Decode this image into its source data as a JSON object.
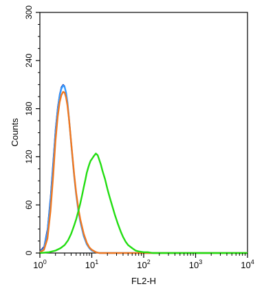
{
  "chart_data": {
    "type": "line",
    "xlabel": "FL2-H",
    "ylabel": "Counts",
    "x_scale": "log",
    "xlim": [
      1,
      10000
    ],
    "ylim": [
      0,
      300
    ],
    "grid": false,
    "x_ticks": [
      {
        "base": "10",
        "exp": "0",
        "value": 1
      },
      {
        "base": "10",
        "exp": "1",
        "value": 10
      },
      {
        "base": "10",
        "exp": "2",
        "value": 100
      },
      {
        "base": "10",
        "exp": "3",
        "value": 1000
      },
      {
        "base": "10",
        "exp": "4",
        "value": 10000
      }
    ],
    "y_ticks": [
      0,
      60,
      120,
      180,
      240,
      300
    ],
    "series": [
      {
        "color": "#1a1a8c",
        "x": [
          1,
          1.2,
          1.4,
          1.6,
          1.8,
          2.0,
          2.2,
          2.4,
          2.6,
          2.8,
          3.0,
          3.2,
          3.4,
          3.6,
          3.8,
          4.0,
          4.3,
          4.6,
          5.0,
          5.5,
          6.0,
          7.0,
          8.0,
          9.0,
          10,
          12,
          14,
          17,
          20,
          30,
          100,
          10000
        ],
        "y": [
          2,
          8,
          30,
          70,
          115,
          155,
          182,
          198,
          207,
          210,
          208,
          200,
          188,
          172,
          155,
          138,
          116,
          96,
          74,
          54,
          40,
          22,
          12,
          6,
          3,
          1,
          0,
          0,
          0,
          0,
          0,
          0
        ]
      },
      {
        "color": "#3399ff",
        "x": [
          1,
          1.2,
          1.4,
          1.6,
          1.8,
          2.0,
          2.2,
          2.4,
          2.6,
          2.8,
          3.0,
          3.2,
          3.4,
          3.6,
          3.8,
          4.0,
          4.3,
          4.6,
          5.0,
          5.5,
          6.0,
          7.0,
          8.0,
          9.0,
          10,
          12,
          14,
          17,
          20,
          30,
          100,
          10000
        ],
        "y": [
          1,
          6,
          26,
          64,
          108,
          150,
          178,
          196,
          205,
          209,
          207,
          200,
          188,
          171,
          154,
          137,
          115,
          95,
          73,
          53,
          39,
          21,
          11,
          6,
          3,
          1,
          0,
          0,
          0,
          0,
          0,
          0
        ]
      },
      {
        "color": "#f07820",
        "x": [
          1,
          1.2,
          1.4,
          1.6,
          1.8,
          2.0,
          2.2,
          2.4,
          2.6,
          2.8,
          3.0,
          3.2,
          3.4,
          3.6,
          3.8,
          4.0,
          4.3,
          4.6,
          5.0,
          5.5,
          6.0,
          7.0,
          8.0,
          9.0,
          10,
          12,
          14,
          17,
          20,
          30,
          100,
          10000
        ],
        "y": [
          1,
          4,
          18,
          52,
          96,
          140,
          170,
          188,
          197,
          201,
          200,
          194,
          184,
          170,
          154,
          138,
          117,
          97,
          75,
          56,
          42,
          24,
          13,
          7,
          4,
          1,
          0,
          0,
          0,
          0,
          0,
          0
        ]
      },
      {
        "color": "#22dd11",
        "x": [
          1,
          1.5,
          2,
          2.5,
          3,
          3.5,
          4,
          4.5,
          5,
          5.5,
          6,
          6.5,
          7,
          7.5,
          8,
          8.5,
          9,
          9.5,
          10,
          11,
          12,
          13,
          14,
          15,
          16,
          18,
          20,
          22,
          25,
          28,
          32,
          36,
          40,
          45,
          50,
          60,
          70,
          80,
          100,
          120,
          150,
          200,
          300,
          1000,
          10000
        ],
        "y": [
          0,
          1,
          3,
          6,
          10,
          16,
          24,
          33,
          42,
          52,
          62,
          72,
          82,
          91,
          100,
          106,
          111,
          115,
          117,
          121,
          124,
          122,
          116,
          110,
          103,
          92,
          80,
          70,
          58,
          47,
          36,
          27,
          20,
          14,
          10,
          6,
          3,
          2,
          1,
          1,
          0,
          0,
          0,
          0,
          0
        ]
      }
    ]
  }
}
